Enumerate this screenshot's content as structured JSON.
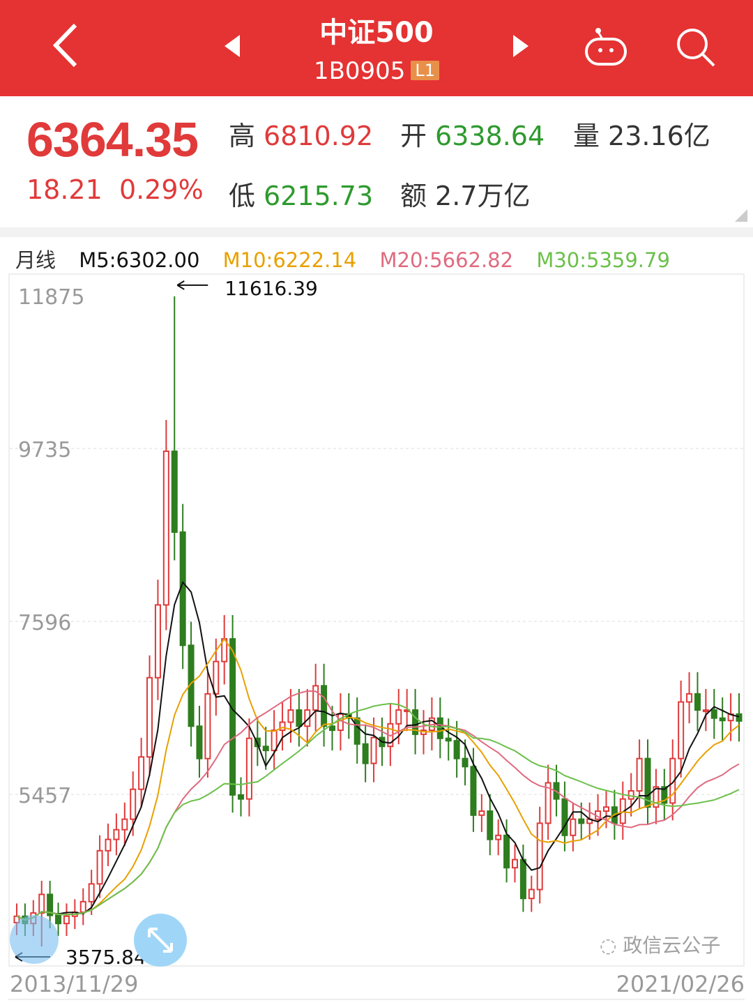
{
  "header": {
    "title": "中证500",
    "code": "1B0905",
    "badge": "L1",
    "icons": [
      "back-chevron-icon",
      "prev-triangle-icon",
      "next-triangle-icon",
      "robot-icon",
      "search-icon"
    ]
  },
  "quote": {
    "price": "6364.35",
    "change": "18.21",
    "change_pct": "0.29%",
    "high_label": "高",
    "high": "6810.92",
    "open_label": "开",
    "open": "6338.64",
    "volume_label": "量",
    "volume": "23.16亿",
    "low_label": "低",
    "low": "6215.73",
    "amount_label": "额",
    "amount": "2.7万亿"
  },
  "legend": {
    "period": "月线",
    "m5": "M5:6302.00",
    "m10": "M10:6222.14",
    "m20": "M20:5662.82",
    "m30": "M30:5359.79"
  },
  "colors": {
    "header": "#e53232",
    "up": "#e03a3a",
    "down": "#2e7d1f",
    "m5": "#111111",
    "m10": "#e8a000",
    "m20": "#e06a80",
    "m30": "#6cc04a"
  },
  "chart_data": {
    "type": "candlestick",
    "y_ticks": [
      "11875",
      "9735",
      "7596",
      "5457"
    ],
    "y_tick_values": [
      11875,
      9735,
      7596,
      5457
    ],
    "x_start": "2013/11/29",
    "x_end": "2021/02/26",
    "max_annotation": "11616.39",
    "max_value": 11616.39,
    "max_index": 19,
    "min_annotation": "3575.84",
    "min_value": 3575.84,
    "min_index": 3,
    "closes": [
      3950,
      3860,
      3990,
      4220,
      3960,
      3860,
      3950,
      4000,
      4130,
      4350,
      4760,
      4900,
      5020,
      5150,
      5520,
      5920,
      6900,
      7800,
      9700,
      8700,
      7300,
      6300,
      5900,
      6700,
      7100,
      7380,
      5450,
      5400,
      6150,
      6050,
      6000,
      6250,
      6350,
      6500,
      6300,
      6500,
      6800,
      6300,
      6250,
      6450,
      6400,
      6080,
      5840,
      6160,
      6050,
      6330,
      6500,
      6500,
      6200,
      6250,
      6400,
      6150,
      6120,
      5900,
      5800,
      5200,
      5250,
      4900,
      4950,
      4550,
      4650,
      4170,
      4280,
      5100,
      5600,
      5400,
      4950,
      5150,
      5100,
      5150,
      5250,
      5300,
      5100,
      5400,
      5500,
      5900,
      5300,
      5550,
      5350,
      5900,
      6600,
      6700,
      6500,
      6500,
      6400,
      6370,
      6450,
      6364.35
    ],
    "moving_averages": [
      "M5",
      "M10",
      "M20",
      "M30"
    ],
    "grid": true
  },
  "watermark": "政信云公子"
}
